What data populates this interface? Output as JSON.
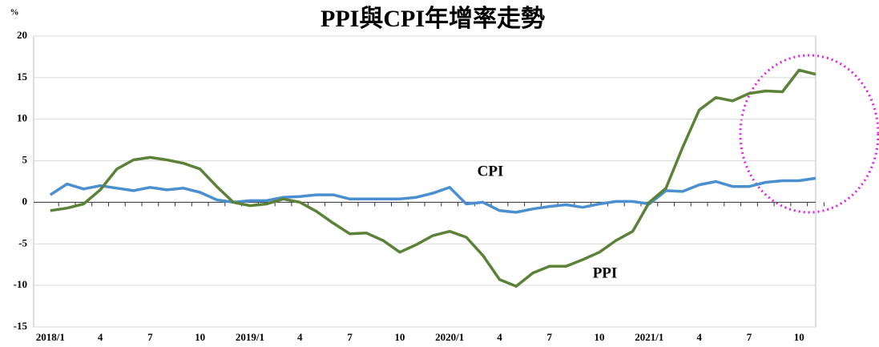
{
  "chart_data": {
    "type": "line",
    "title": "PPI與CPI年增率走勢",
    "y_unit": "%",
    "categories": [
      "2018/1",
      null,
      null,
      "4",
      null,
      null,
      "7",
      null,
      null,
      "10",
      null,
      null,
      "2019/1",
      null,
      null,
      "4",
      null,
      null,
      "7",
      null,
      null,
      "10",
      null,
      null,
      "2020/1",
      null,
      null,
      "4",
      null,
      null,
      "7",
      null,
      null,
      "10",
      null,
      null,
      "2021/1",
      null,
      null,
      "4",
      null,
      null,
      "7",
      null,
      null,
      "10",
      null
    ],
    "series": [
      {
        "name": "CPI",
        "color": "#4a8fd0",
        "values": [
          0.9,
          2.2,
          1.6,
          2.0,
          1.7,
          1.4,
          1.8,
          1.5,
          1.7,
          1.2,
          0.3,
          0.0,
          0.2,
          0.2,
          0.6,
          0.7,
          0.9,
          0.9,
          0.4,
          0.4,
          0.4,
          0.4,
          0.6,
          1.1,
          1.8,
          -0.2,
          0.0,
          -1.0,
          -1.2,
          -0.8,
          -0.5,
          -0.3,
          -0.6,
          -0.2,
          0.1,
          0.1,
          -0.2,
          1.4,
          1.3,
          2.1,
          2.5,
          1.9,
          1.9,
          2.4,
          2.6,
          2.6,
          2.9
        ]
      },
      {
        "name": "PPI",
        "color": "#5b8238",
        "values": [
          -1.0,
          -0.7,
          -0.2,
          1.5,
          4.0,
          5.1,
          5.4,
          5.1,
          4.7,
          4.0,
          1.9,
          0.0,
          -0.4,
          -0.2,
          0.4,
          0.0,
          -1.1,
          -2.5,
          -3.8,
          -3.7,
          -4.6,
          -6.0,
          -5.1,
          -4.0,
          -3.5,
          -4.2,
          -6.4,
          -9.3,
          -10.1,
          -8.5,
          -7.7,
          -7.7,
          -6.9,
          -6.0,
          -4.6,
          -3.5,
          0.0,
          1.7,
          6.6,
          11.1,
          12.6,
          12.2,
          13.1,
          13.4,
          13.3,
          15.9,
          15.4
        ]
      }
    ],
    "ylim": [
      -15,
      20
    ],
    "yticks": [
      -15,
      -10,
      -5,
      0,
      5,
      10,
      15,
      20
    ],
    "grid": true
  }
}
